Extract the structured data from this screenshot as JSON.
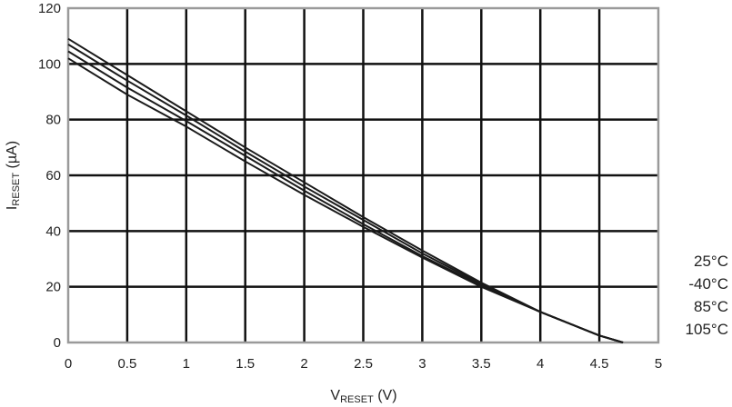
{
  "chart_data": {
    "type": "line",
    "xlabel": "VRESET (V)",
    "xlabel_main": "V",
    "xlabel_sub": "RESET",
    "xlabel_unit": " (V)",
    "ylabel": "IRESET (µA)",
    "ylabel_main": "I",
    "ylabel_sub": "RESET",
    "ylabel_unit": " (µA)",
    "xlim": [
      0,
      5
    ],
    "ylim": [
      0,
      120
    ],
    "x_ticks": [
      0,
      0.5,
      1,
      1.5,
      2,
      2.5,
      3,
      3.5,
      4,
      4.5,
      5
    ],
    "y_ticks": [
      0,
      20,
      40,
      60,
      80,
      100,
      120
    ],
    "x_tick_labels": [
      "0",
      "0.5",
      "1",
      "1.5",
      "2",
      "2.5",
      "3",
      "3.5",
      "4",
      "4.5",
      "5"
    ],
    "y_tick_labels": [
      "0",
      "20",
      "40",
      "60",
      "80",
      "100",
      "120"
    ],
    "grid": true,
    "legend_placement": "right",
    "series": [
      {
        "name": "25°C",
        "x": [
          0,
          0.5,
          1,
          1.5,
          2,
          2.5,
          3,
          3.5,
          4,
          4.5,
          4.7
        ],
        "y": [
          109,
          96,
          83,
          70,
          57.5,
          45,
          33,
          21.5,
          11,
          2.5,
          0
        ]
      },
      {
        "name": "-40°C",
        "x": [
          0,
          0.5,
          1,
          1.5,
          2,
          2.5,
          3,
          3.5,
          4,
          4.5,
          4.7
        ],
        "y": [
          107,
          94,
          81.5,
          68.5,
          56,
          44,
          32,
          21,
          11,
          2.5,
          0
        ]
      },
      {
        "name": "85°C",
        "x": [
          0,
          0.5,
          1,
          1.5,
          2,
          2.5,
          3,
          3.5,
          4,
          4.5,
          4.7
        ],
        "y": [
          104.5,
          91.5,
          79.5,
          67,
          54.5,
          42.5,
          31,
          20.5,
          11,
          2.5,
          0
        ]
      },
      {
        "name": "105°C",
        "x": [
          0,
          0.5,
          1,
          1.5,
          2,
          2.5,
          3,
          3.5,
          4,
          4.5,
          4.7
        ],
        "y": [
          102,
          89,
          77.5,
          65,
          53,
          41.5,
          30.5,
          20,
          11,
          2.5,
          0
        ]
      }
    ],
    "colors": {
      "line": "#1a1a1a",
      "grid": "#111111",
      "frame": "#9a9a9a"
    }
  }
}
